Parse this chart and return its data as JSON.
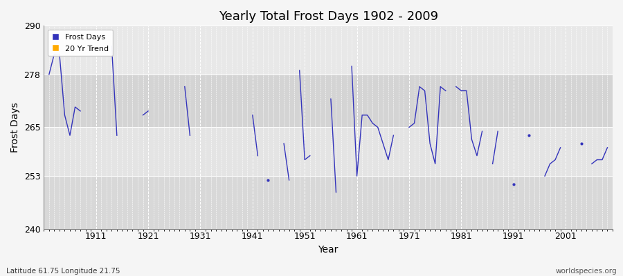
{
  "title": "Yearly Total Frost Days 1902 - 2009",
  "xlabel": "Year",
  "ylabel": "Frost Days",
  "bottom_left_text": "Latitude 61.75 Longitude 21.75",
  "bottom_right_text": "worldspecies.org",
  "ylim": [
    240,
    290
  ],
  "xlim": [
    1901,
    2010
  ],
  "yticks": [
    240,
    253,
    265,
    278,
    290
  ],
  "xticks": [
    1911,
    1921,
    1931,
    1941,
    1951,
    1961,
    1971,
    1981,
    1991,
    2001
  ],
  "line_color": "#3333bb",
  "plot_bg": "#e8e8e8",
  "band1_color": "#d8d8d8",
  "legend_items": [
    {
      "label": "Frost Days",
      "color": "#3333bb"
    },
    {
      "label": "20 Yr Trend",
      "color": "#ffaa00"
    }
  ],
  "data_years": [
    1902,
    1903,
    1904,
    1905,
    1906,
    1907,
    1908,
    1914,
    1915,
    1920,
    1921,
    1928,
    1929,
    1941,
    1942,
    1944,
    1947,
    1948,
    1950,
    1951,
    1952,
    1956,
    1957,
    1960,
    1961,
    1962,
    1963,
    1964,
    1965,
    1966,
    1967,
    1968,
    1971,
    1972,
    1973,
    1974,
    1975,
    1976,
    1977,
    1978,
    1980,
    1981,
    1982,
    1983,
    1984,
    1985,
    1987,
    1988,
    1991,
    1994,
    1997,
    1998,
    1999,
    2000,
    2004,
    2006,
    2007,
    2008,
    2009
  ],
  "data_values": [
    278,
    283,
    283,
    268,
    263,
    270,
    269,
    285,
    263,
    268,
    269,
    275,
    263,
    268,
    258,
    252,
    261,
    252,
    279,
    257,
    258,
    272,
    249,
    280,
    253,
    268,
    268,
    266,
    265,
    261,
    257,
    263,
    265,
    266,
    275,
    274,
    261,
    256,
    275,
    274,
    275,
    274,
    274,
    262,
    258,
    264,
    256,
    264,
    251,
    263,
    253,
    256,
    257,
    260,
    261,
    256,
    257,
    257,
    260
  ]
}
